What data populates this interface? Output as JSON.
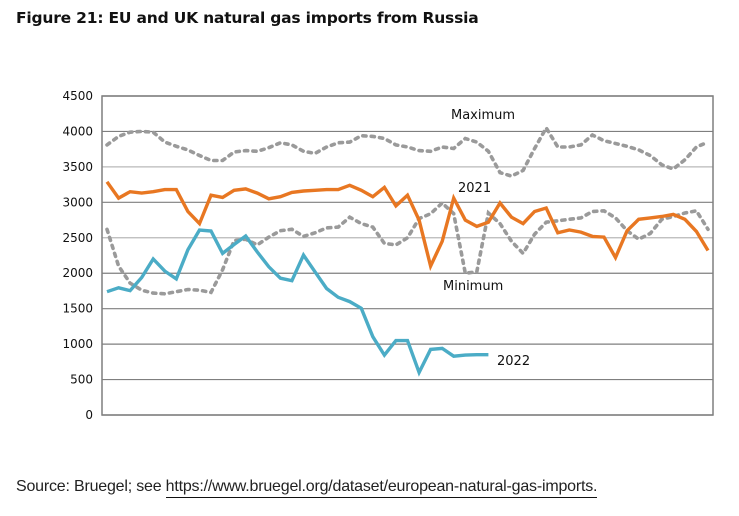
{
  "figure": {
    "title": "Figure 21: EU and UK natural gas imports from Russia",
    "source_prefix": "Source: Bruegel; see ",
    "source_link": "https://www.bruegel.org/dataset/european-natural-gas-imports."
  },
  "colors": {
    "y2021": "#E87722",
    "y2022": "#4BACC6",
    "range": "#9a9a9a",
    "grid": "#7f7f7f"
  },
  "chart_data": {
    "type": "line",
    "title": "Figure 21: EU and UK natural gas imports from Russia",
    "xlabel": "",
    "ylabel": "",
    "ylim": [
      0,
      4500
    ],
    "yticks": [
      0,
      500,
      1000,
      1500,
      2000,
      2500,
      3000,
      3500,
      4000,
      4500
    ],
    "x_points": 53,
    "grid": true,
    "legend": "inline-annotations",
    "annotations": [
      {
        "text": "Maximum",
        "series": "Maximum"
      },
      {
        "text": "2021",
        "series": "2021"
      },
      {
        "text": "Minimum",
        "series": "Minimum"
      },
      {
        "text": "2022",
        "series": "2022"
      }
    ],
    "series": [
      {
        "name": "Maximum",
        "style": "dotted",
        "values": [
          3810,
          3930,
          3990,
          4000,
          3990,
          3850,
          3790,
          3740,
          3660,
          3590,
          3590,
          3710,
          3730,
          3720,
          3770,
          3840,
          3810,
          3720,
          3690,
          3780,
          3840,
          3850,
          3940,
          3930,
          3900,
          3810,
          3780,
          3730,
          3720,
          3780,
          3760,
          3900,
          3850,
          3720,
          3420,
          3370,
          3450,
          3760,
          4050,
          3780,
          3780,
          3810,
          3950,
          3870,
          3830,
          3790,
          3740,
          3660,
          3530,
          3470,
          3600,
          3780,
          3850
        ]
      },
      {
        "name": "Minimum",
        "style": "dotted",
        "values": [
          2620,
          2100,
          1860,
          1760,
          1720,
          1710,
          1740,
          1770,
          1760,
          1730,
          2050,
          2460,
          2480,
          2400,
          2510,
          2600,
          2620,
          2520,
          2570,
          2640,
          2650,
          2790,
          2700,
          2650,
          2420,
          2400,
          2500,
          2770,
          2840,
          2990,
          2840,
          2000,
          2020,
          2850,
          2700,
          2450,
          2280,
          2550,
          2720,
          2740,
          2760,
          2780,
          2870,
          2880,
          2780,
          2600,
          2480,
          2560,
          2760,
          2800,
          2850,
          2880,
          2620
        ]
      },
      {
        "name": "2021",
        "style": "solid",
        "values": [
          3290,
          3060,
          3150,
          3130,
          3150,
          3180,
          3180,
          2870,
          2700,
          3100,
          3070,
          3170,
          3190,
          3130,
          3050,
          3080,
          3140,
          3160,
          3170,
          3180,
          3180,
          3240,
          3170,
          3080,
          3210,
          2950,
          3100,
          2750,
          2100,
          2450,
          3060,
          2750,
          2660,
          2720,
          2990,
          2790,
          2700,
          2870,
          2920,
          2570,
          2610,
          2580,
          2520,
          2510,
          2220,
          2600,
          2760,
          2780,
          2800,
          2830,
          2760,
          2590,
          2320
        ]
      },
      {
        "name": "2022",
        "style": "solid",
        "values": [
          1740,
          1795,
          1755,
          1940,
          2200,
          2030,
          1920,
          2330,
          2610,
          2595,
          2280,
          2405,
          2525,
          2300,
          2090,
          1930,
          1895,
          2255,
          2020,
          1785,
          1660,
          1600,
          1505,
          1105,
          845,
          1050,
          1050,
          600,
          925,
          940,
          830,
          845,
          850,
          850
        ]
      }
    ]
  }
}
